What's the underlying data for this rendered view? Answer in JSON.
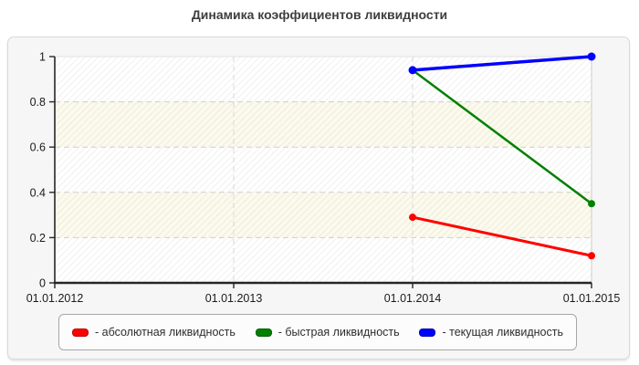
{
  "title": "Динамика коэффициентов ликвидности",
  "chart_data": {
    "type": "line",
    "title": "Динамика коэффициентов ликвидности",
    "categories": [
      "01.01.2012",
      "01.01.2013",
      "01.01.2014",
      "01.01.2015"
    ],
    "xlabel": "",
    "ylabel": "",
    "ylim": [
      0,
      1
    ],
    "y_ticks": [
      0,
      0.2,
      0.4,
      0.6,
      0.8,
      1
    ],
    "y_tick_labels": [
      "0",
      "0.2",
      "0.4",
      "0.6",
      "0.8",
      "1"
    ],
    "grid": "dashed horizontal and vertical",
    "legend_position": "bottom",
    "series": [
      {
        "name": "абсолютная ликвидность",
        "legend_label": "- абсолютная ликвидность",
        "color": "#ff0000",
        "values": [
          null,
          null,
          0.29,
          0.12
        ]
      },
      {
        "name": "быстрая ликвидность",
        "legend_label": "- быстрая ликвидность",
        "color": "#008000",
        "values": [
          null,
          null,
          0.94,
          0.35
        ]
      },
      {
        "name": "текущая ликвидность",
        "legend_label": "- текущая ликвидность",
        "color": "#0000ff",
        "values": [
          null,
          null,
          0.94,
          1.0
        ]
      }
    ],
    "colors": {
      "band_light": "#ffffff",
      "band_cream": "#fbfaec",
      "grid": "#cfcfcf",
      "axis": "#262626",
      "panel_background": "#f6f6f6"
    }
  }
}
